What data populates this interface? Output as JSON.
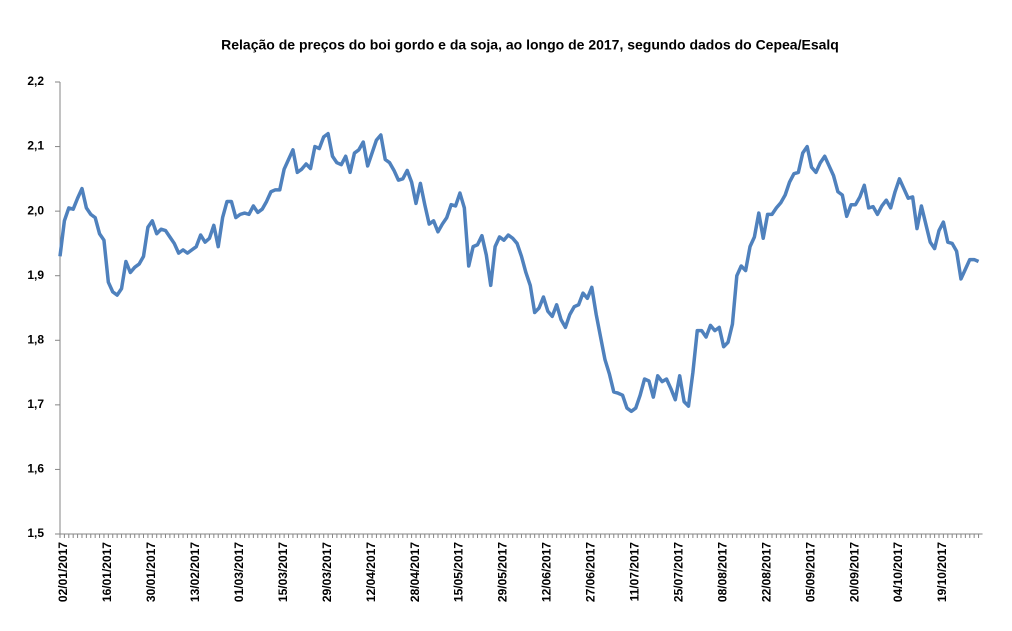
{
  "chart_data": {
    "type": "line",
    "title": "Relação de preços do boi gordo e da soja, ao longo de 2017, segundo dados do Cepea/Esalq",
    "categories": [
      "02/01/2017",
      null,
      null,
      null,
      null,
      null,
      null,
      null,
      null,
      null,
      "16/01/2017",
      null,
      null,
      null,
      null,
      null,
      null,
      null,
      null,
      null,
      "30/01/2017",
      null,
      null,
      null,
      null,
      null,
      null,
      null,
      null,
      null,
      "13/02/2017",
      null,
      null,
      null,
      null,
      null,
      null,
      null,
      null,
      null,
      "01/03/2017",
      null,
      null,
      null,
      null,
      null,
      null,
      null,
      null,
      null,
      "15/03/2017",
      null,
      null,
      null,
      null,
      null,
      null,
      null,
      null,
      null,
      "29/03/2017",
      null,
      null,
      null,
      null,
      null,
      null,
      null,
      null,
      null,
      "12/04/2017",
      null,
      null,
      null,
      null,
      null,
      null,
      null,
      null,
      null,
      "28/04/2017",
      null,
      null,
      null,
      null,
      null,
      null,
      null,
      null,
      null,
      "15/05/2017",
      null,
      null,
      null,
      null,
      null,
      null,
      null,
      null,
      null,
      "29/05/2017",
      null,
      null,
      null,
      null,
      null,
      null,
      null,
      null,
      null,
      "12/06/2017",
      null,
      null,
      null,
      null,
      null,
      null,
      null,
      null,
      null,
      "27/06/2017",
      null,
      null,
      null,
      null,
      null,
      null,
      null,
      null,
      null,
      "11/07/2017",
      null,
      null,
      null,
      null,
      null,
      null,
      null,
      null,
      null,
      "25/07/2017",
      null,
      null,
      null,
      null,
      null,
      null,
      null,
      null,
      null,
      "08/08/2017",
      null,
      null,
      null,
      null,
      null,
      null,
      null,
      null,
      null,
      "22/08/2017",
      null,
      null,
      null,
      null,
      null,
      null,
      null,
      null,
      null,
      "05/09/2017",
      null,
      null,
      null,
      null,
      null,
      null,
      null,
      null,
      null,
      "20/09/2017",
      null,
      null,
      null,
      null,
      null,
      null,
      null,
      null,
      null,
      "04/10/2017",
      null,
      null,
      null,
      null,
      null,
      null,
      null,
      null,
      null,
      "19/10/2017",
      null,
      null,
      null,
      null,
      null,
      null,
      null,
      null,
      null
    ],
    "series": [
      {
        "color": "#4f81bd",
        "values": [
          1.93,
          1.985,
          2.005,
          2.003,
          2.02,
          2.035,
          2.005,
          1.995,
          1.99,
          1.965,
          1.955,
          1.89,
          1.875,
          1.87,
          1.88,
          1.922,
          1.905,
          1.913,
          1.918,
          1.93,
          1.975,
          1.985,
          1.965,
          1.972,
          1.97,
          1.96,
          1.95,
          1.935,
          1.94,
          1.935,
          1.94,
          1.945,
          1.963,
          1.952,
          1.958,
          1.978,
          1.945,
          1.99,
          2.015,
          2.015,
          1.99,
          1.995,
          1.997,
          1.995,
          2.008,
          1.998,
          2.003,
          2.015,
          2.03,
          2.033,
          2.033,
          2.065,
          2.08,
          2.095,
          2.06,
          2.065,
          2.073,
          2.066,
          2.1,
          2.097,
          2.115,
          2.12,
          2.085,
          2.075,
          2.072,
          2.085,
          2.06,
          2.09,
          2.095,
          2.107,
          2.07,
          2.09,
          2.11,
          2.118,
          2.08,
          2.075,
          2.063,
          2.048,
          2.05,
          2.063,
          2.045,
          2.012,
          2.043,
          2.01,
          1.98,
          1.985,
          1.968,
          1.98,
          1.99,
          2.01,
          2.008,
          2.028,
          2.005,
          1.915,
          1.945,
          1.948,
          1.962,
          1.932,
          1.885,
          1.945,
          1.96,
          1.955,
          1.963,
          1.958,
          1.95,
          1.93,
          1.905,
          1.885,
          1.843,
          1.85,
          1.867,
          1.845,
          1.837,
          1.855,
          1.832,
          1.82,
          1.84,
          1.852,
          1.855,
          1.873,
          1.865,
          1.882,
          1.84,
          1.805,
          1.77,
          1.748,
          1.72,
          1.718,
          1.715,
          1.695,
          1.69,
          1.695,
          1.715,
          1.74,
          1.737,
          1.712,
          1.745,
          1.736,
          1.74,
          1.725,
          1.708,
          1.745,
          1.705,
          1.698,
          1.75,
          1.815,
          1.815,
          1.805,
          1.823,
          1.815,
          1.82,
          1.79,
          1.797,
          1.825,
          1.9,
          1.915,
          1.908,
          1.945,
          1.96,
          1.997,
          1.958,
          1.995,
          1.995,
          2.005,
          2.013,
          2.025,
          2.045,
          2.058,
          2.06,
          2.09,
          2.1,
          2.068,
          2.06,
          2.075,
          2.085,
          2.07,
          2.055,
          2.03,
          2.025,
          1.992,
          2.01,
          2.01,
          2.022,
          2.04,
          2.005,
          2.007,
          1.995,
          2.008,
          2.017,
          2.005,
          2.03,
          2.05,
          2.035,
          2.02,
          2.022,
          1.973,
          2.008,
          1.98,
          1.952,
          1.942,
          1.97,
          1.983,
          1.952,
          1.95,
          1.938,
          1.895,
          1.91,
          1.925,
          1.925,
          1.922
        ]
      }
    ],
    "ylim": [
      1.5,
      2.2
    ],
    "yticks": [
      {
        "value": 1.5,
        "label": "1,5"
      },
      {
        "value": 1.6,
        "label": "1,6"
      },
      {
        "value": 1.7,
        "label": "1,7"
      },
      {
        "value": 1.8,
        "label": "1,8"
      },
      {
        "value": 1.9,
        "label": "1,9"
      },
      {
        "value": 2.0,
        "label": "2,0"
      },
      {
        "value": 2.1,
        "label": "2,1"
      },
      {
        "value": 2.2,
        "label": "2,2"
      }
    ],
    "grid": false
  }
}
